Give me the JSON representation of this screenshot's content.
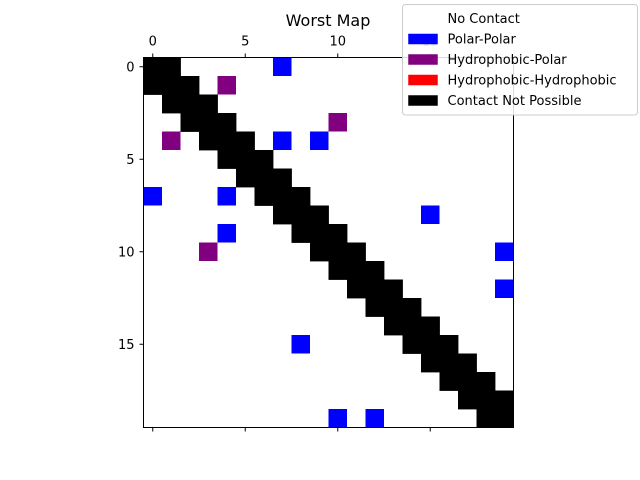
{
  "chart_data": {
    "type": "heatmap",
    "title": "Worst Map",
    "xlabel": "",
    "ylabel": "",
    "n": 20,
    "x_ticks": [
      0,
      5,
      10,
      15
    ],
    "y_ticks": [
      0,
      5,
      10,
      15
    ],
    "x_axis_position": "top",
    "grid": false,
    "legend_position": "top-right",
    "categories": [
      {
        "key": "none",
        "label": "No Contact",
        "color": "#ffffff"
      },
      {
        "key": "pp",
        "label": "Polar-Polar",
        "color": "#0000ff"
      },
      {
        "key": "hp",
        "label": "Hydrophobic-Polar",
        "color": "#800080"
      },
      {
        "key": "hh",
        "label": "Hydrophobic-Hydrophobic",
        "color": "#ff0000"
      },
      {
        "key": "np",
        "label": "Contact Not Possible",
        "color": "#000000"
      }
    ],
    "contact_not_possible": "cells with |row - col| <= 1",
    "cells": [
      {
        "row": 0,
        "col": 7,
        "type": "pp"
      },
      {
        "row": 1,
        "col": 4,
        "type": "hp"
      },
      {
        "row": 3,
        "col": 10,
        "type": "hp"
      },
      {
        "row": 4,
        "col": 1,
        "type": "hp"
      },
      {
        "row": 4,
        "col": 7,
        "type": "pp"
      },
      {
        "row": 4,
        "col": 9,
        "type": "pp"
      },
      {
        "row": 7,
        "col": 0,
        "type": "pp"
      },
      {
        "row": 7,
        "col": 4,
        "type": "pp"
      },
      {
        "row": 8,
        "col": 15,
        "type": "pp"
      },
      {
        "row": 9,
        "col": 4,
        "type": "pp"
      },
      {
        "row": 10,
        "col": 3,
        "type": "hp"
      },
      {
        "row": 10,
        "col": 19,
        "type": "pp"
      },
      {
        "row": 12,
        "col": 19,
        "type": "pp"
      },
      {
        "row": 15,
        "col": 8,
        "type": "pp"
      },
      {
        "row": 19,
        "col": 10,
        "type": "pp"
      },
      {
        "row": 19,
        "col": 12,
        "type": "pp"
      }
    ]
  }
}
